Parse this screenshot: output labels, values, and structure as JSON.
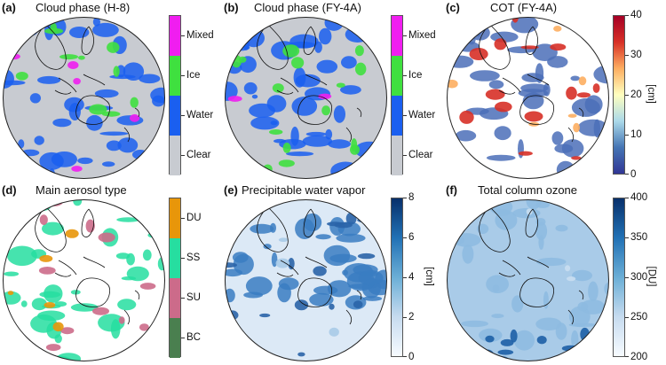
{
  "chart_data": [
    {
      "type": "heatmap",
      "panel_label": "(a)",
      "title": "Cloud phase (H-8)",
      "colorbar": {
        "kind": "categorical",
        "categories": [
          "Clear",
          "Water",
          "Ice",
          "Mixed"
        ],
        "colors": [
          "#c8cbd1",
          "#1a5ff0",
          "#3fe03f",
          "#f01ef0"
        ]
      },
      "map_colors": {
        "ocean": "#c8cbd1",
        "dominant": "#1a5ff0",
        "accent": "#3fe03f",
        "minor": "#f01ef0"
      }
    },
    {
      "type": "heatmap",
      "panel_label": "(b)",
      "title": "Cloud phase (FY-4A)",
      "colorbar": {
        "kind": "categorical",
        "categories": [
          "Clear",
          "Water",
          "Ice",
          "Mixed"
        ],
        "colors": [
          "#c8cbd1",
          "#1a5ff0",
          "#3fe03f",
          "#f01ef0"
        ]
      },
      "map_colors": {
        "ocean": "#c8cbd1",
        "dominant": "#1a5ff0",
        "accent": "#3fe03f",
        "minor": "#f01ef0"
      }
    },
    {
      "type": "heatmap",
      "panel_label": "(c)",
      "title": "COT (FY-4A)",
      "colorbar": {
        "kind": "continuous",
        "range": [
          0,
          40
        ],
        "ticks": [
          "0",
          "10",
          "20",
          "30",
          "40"
        ],
        "unit": "[cm]",
        "colors": [
          "#313695",
          "#4575b4",
          "#abd9e9",
          "#ffffbf",
          "#fdae61",
          "#d73027",
          "#a50026"
        ]
      },
      "map_colors": {
        "ocean": "#ffffff",
        "dominant": "#4b6fb8",
        "accent": "#d73027",
        "minor": "#fdae61"
      }
    },
    {
      "type": "heatmap",
      "panel_label": "(d)",
      "title": "Main aerosol type",
      "colorbar": {
        "kind": "categorical",
        "categories": [
          "BC",
          "SU",
          "SS",
          "DU"
        ],
        "colors": [
          "#4a7f4f",
          "#cc6b8a",
          "#26dea0",
          "#e8960a"
        ]
      },
      "map_colors": {
        "ocean": "#ffffff",
        "dominant": "#26dea0",
        "accent": "#cc6b8a",
        "minor": "#e8960a"
      }
    },
    {
      "type": "heatmap",
      "panel_label": "(e)",
      "title": "Precipitable water vapor",
      "colorbar": {
        "kind": "continuous",
        "range": [
          0,
          8
        ],
        "ticks": [
          "0",
          "2",
          "4",
          "6",
          "8"
        ],
        "unit": "[cm]",
        "colors": [
          "#f7fbff",
          "#c6dbef",
          "#6baed6",
          "#2171b5",
          "#08306b"
        ]
      },
      "map_colors": {
        "ocean": "#dce9f6",
        "dominant": "#3a7cc2",
        "accent": "#2a64a8",
        "minor": "#a9cbe8"
      }
    },
    {
      "type": "heatmap",
      "panel_label": "(f)",
      "title": "Total column ozone",
      "colorbar": {
        "kind": "continuous",
        "range": [
          200,
          400
        ],
        "ticks": [
          "200",
          "250",
          "300",
          "350",
          "400"
        ],
        "unit": "[DU]",
        "colors": [
          "#f7fbff",
          "#c6dbef",
          "#6baed6",
          "#2171b5",
          "#08306b"
        ]
      },
      "map_colors": {
        "ocean": "#a9cbe8",
        "dominant": "#8dbbe0",
        "accent": "#1d5fa6",
        "minor": "#c9def1"
      }
    }
  ]
}
